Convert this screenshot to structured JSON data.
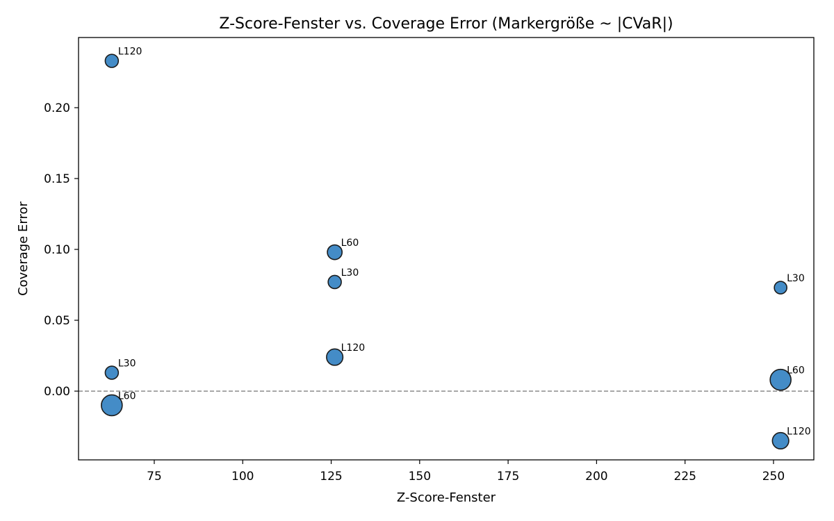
{
  "chart_data": {
    "type": "scatter",
    "title": "Z-Score-Fenster vs. Coverage Error (Markergröße ~ |CVaR|)",
    "xlabel": "Z-Score-Fenster",
    "ylabel": "Coverage Error",
    "xlim": [
      53.6,
      261.4
    ],
    "ylim": [
      -0.0485,
      0.2495
    ],
    "xticks": [
      75,
      100,
      125,
      150,
      175,
      200,
      225,
      250
    ],
    "yticks": [
      0.0,
      0.05,
      0.1,
      0.15,
      0.2
    ],
    "xtick_labels": [
      "75",
      "100",
      "125",
      "150",
      "175",
      "200",
      "225",
      "250"
    ],
    "ytick_labels": [
      "0.00",
      "0.05",
      "0.10",
      "0.15",
      "0.20"
    ],
    "grid": false,
    "reference_line": {
      "y": 0,
      "style": "dashed",
      "color": "#808080"
    },
    "marker_color": "#3a86c4",
    "marker_edge_color": "#1b1b1b",
    "points": [
      {
        "x": 63,
        "y": 0.233,
        "label": "L120",
        "size": 0.4
      },
      {
        "x": 63,
        "y": 0.013,
        "label": "L30",
        "size": 0.4
      },
      {
        "x": 63,
        "y": -0.01,
        "label": "L60",
        "size": 1.0
      },
      {
        "x": 126,
        "y": 0.098,
        "label": "L60",
        "size": 0.52
      },
      {
        "x": 126,
        "y": 0.077,
        "label": "L30",
        "size": 0.4
      },
      {
        "x": 126,
        "y": 0.024,
        "label": "L120",
        "size": 0.65
      },
      {
        "x": 252,
        "y": 0.073,
        "label": "L30",
        "size": 0.35
      },
      {
        "x": 252,
        "y": 0.008,
        "label": "L60",
        "size": 1.0
      },
      {
        "x": 252,
        "y": -0.035,
        "label": "L120",
        "size": 0.65
      }
    ]
  }
}
